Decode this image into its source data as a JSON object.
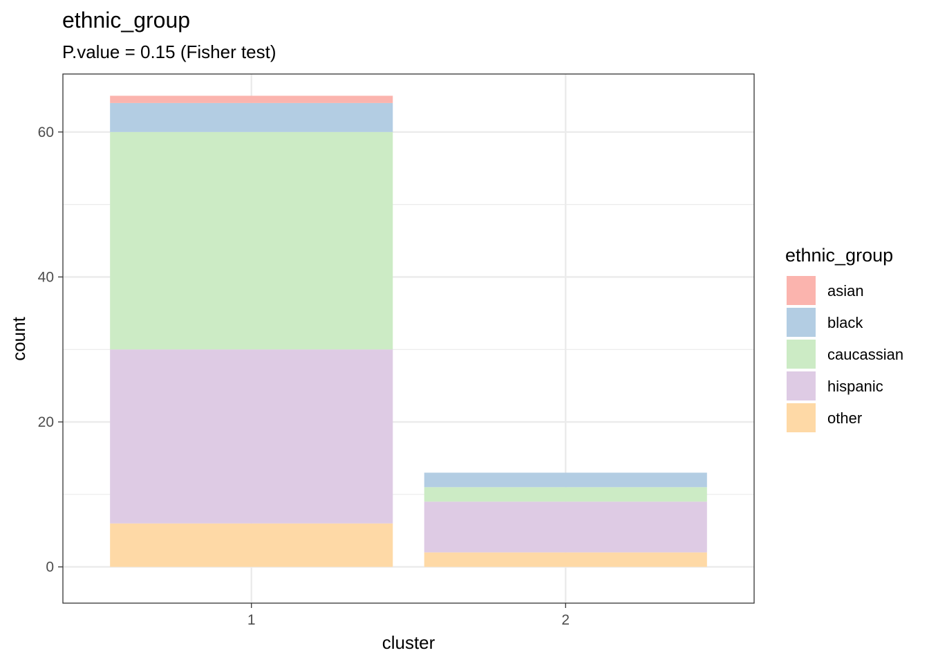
{
  "chart_data": {
    "type": "bar",
    "stacked": true,
    "title": "ethnic_group",
    "subtitle": "P.value = 0.15 (Fisher test)",
    "xlabel": "cluster",
    "ylabel": "count",
    "categories": [
      "1",
      "2"
    ],
    "ylim": [
      -5,
      68
    ],
    "yticks": [
      0,
      20,
      40,
      60
    ],
    "grid": true,
    "legend": {
      "title": "ethnic_group",
      "position": "right"
    },
    "series": [
      {
        "name": "asian",
        "color": "#FBB4AE",
        "values": [
          1,
          0
        ]
      },
      {
        "name": "black",
        "color": "#B3CDE3",
        "values": [
          4,
          2
        ]
      },
      {
        "name": "caucassian",
        "color": "#CCEBC5",
        "values": [
          30,
          2
        ]
      },
      {
        "name": "hispanic",
        "color": "#DECBE4",
        "values": [
          24,
          7
        ]
      },
      {
        "name": "other",
        "color": "#FED9A6",
        "values": [
          6,
          2
        ]
      }
    ]
  }
}
